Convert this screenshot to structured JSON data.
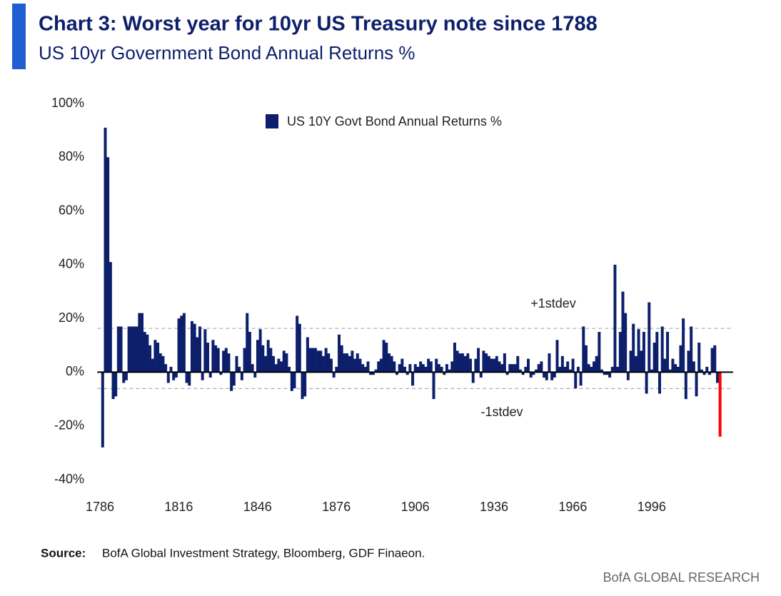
{
  "chart_data": {
    "type": "bar",
    "title": "Chart 3: Worst year for 10yr US Treasury note since 1788",
    "subtitle": "US 10yr Government Bond Annual Returns %",
    "source_label": "Source:",
    "source_text": "BofA Global Investment Strategy, Bloomberg, GDF Finaeon.",
    "footer": "BofA GLOBAL RESEARCH",
    "legend_position": "top",
    "xlim": [
      1785,
      2027
    ],
    "xticks": [
      1786,
      1816,
      1846,
      1876,
      1906,
      1936,
      1966,
      1996
    ],
    "ylim": [
      -40,
      100
    ],
    "yticks": [
      {
        "value": -40,
        "label": "-40%"
      },
      {
        "value": -20,
        "label": "-20%"
      },
      {
        "value": 0,
        "label": "0%"
      },
      {
        "value": 20,
        "label": "20%"
      },
      {
        "value": 40,
        "label": "40%"
      },
      {
        "value": 60,
        "label": "60%"
      },
      {
        "value": 80,
        "label": "80%"
      },
      {
        "value": 100,
        "label": "100%"
      }
    ],
    "reference_lines": [
      {
        "label": "+1stdev",
        "value": 16.3
      },
      {
        "label": "-1stdev",
        "value": -6.1
      }
    ],
    "last_color": "#ff0000",
    "series": [
      {
        "name": "US 10Y Govt Bond Annual Returns %",
        "color": "#0d1f6b",
        "x": [
          1787,
          1788,
          1789,
          1790,
          1791,
          1792,
          1793,
          1794,
          1795,
          1796,
          1797,
          1798,
          1799,
          1800,
          1801,
          1802,
          1803,
          1804,
          1805,
          1806,
          1807,
          1808,
          1809,
          1810,
          1811,
          1812,
          1813,
          1814,
          1815,
          1816,
          1817,
          1818,
          1819,
          1820,
          1821,
          1822,
          1823,
          1824,
          1825,
          1826,
          1827,
          1828,
          1829,
          1830,
          1831,
          1832,
          1833,
          1834,
          1835,
          1836,
          1837,
          1838,
          1839,
          1840,
          1841,
          1842,
          1843,
          1844,
          1845,
          1846,
          1847,
          1848,
          1849,
          1850,
          1851,
          1852,
          1853,
          1854,
          1855,
          1856,
          1857,
          1858,
          1859,
          1860,
          1861,
          1862,
          1863,
          1864,
          1865,
          1866,
          1867,
          1868,
          1869,
          1870,
          1871,
          1872,
          1873,
          1874,
          1875,
          1876,
          1877,
          1878,
          1879,
          1880,
          1881,
          1882,
          1883,
          1884,
          1885,
          1886,
          1887,
          1888,
          1889,
          1890,
          1891,
          1892,
          1893,
          1894,
          1895,
          1896,
          1897,
          1898,
          1899,
          1900,
          1901,
          1902,
          1903,
          1904,
          1905,
          1906,
          1907,
          1908,
          1909,
          1910,
          1911,
          1912,
          1913,
          1914,
          1915,
          1916,
          1917,
          1918,
          1919,
          1920,
          1921,
          1922,
          1923,
          1924,
          1925,
          1926,
          1927,
          1928,
          1929,
          1930,
          1931,
          1932,
          1933,
          1934,
          1935,
          1936,
          1937,
          1938,
          1939,
          1940,
          1941,
          1942,
          1943,
          1944,
          1945,
          1946,
          1947,
          1948,
          1949,
          1950,
          1951,
          1952,
          1953,
          1954,
          1955,
          1956,
          1957,
          1958,
          1959,
          1960,
          1961,
          1962,
          1963,
          1964,
          1965,
          1966,
          1967,
          1968,
          1969,
          1970,
          1971,
          1972,
          1973,
          1974,
          1975,
          1976,
          1977,
          1978,
          1979,
          1980,
          1981,
          1982,
          1983,
          1984,
          1985,
          1986,
          1987,
          1988,
          1989,
          1990,
          1991,
          1992,
          1993,
          1994,
          1995,
          1996,
          1997,
          1998,
          1999,
          2000,
          2001,
          2002,
          2003,
          2004,
          2005,
          2006,
          2007,
          2008,
          2009,
          2010,
          2011,
          2012,
          2013,
          2014,
          2015,
          2016,
          2017,
          2018,
          2019,
          2020,
          2021,
          2022
        ],
        "values": [
          -28,
          91,
          80,
          41,
          -10,
          -9,
          17,
          17,
          -4,
          -3,
          17,
          17,
          17,
          17,
          22,
          22,
          15,
          14,
          10,
          5,
          12,
          11,
          7,
          6,
          3,
          -4,
          2,
          -3,
          -2,
          20,
          21,
          22,
          -4,
          -5,
          19,
          18,
          13,
          17,
          -3,
          16,
          11,
          -2,
          12,
          10,
          9,
          -1,
          8,
          9,
          7,
          -7,
          -5,
          6,
          2,
          -3,
          9,
          22,
          15,
          3,
          -2,
          12,
          16,
          10,
          6,
          12,
          9,
          6,
          3,
          5,
          4,
          8,
          7,
          2,
          -7,
          -6,
          21,
          18,
          -10,
          -9,
          13,
          9,
          9,
          9,
          8,
          8,
          6,
          9,
          7,
          5,
          -2,
          2,
          14,
          10,
          7,
          7,
          6,
          8,
          5,
          7,
          5,
          3,
          2,
          4,
          -1,
          -1,
          1,
          4,
          5,
          12,
          11,
          7,
          6,
          4,
          -1,
          3,
          5,
          2,
          -1,
          3,
          -5,
          3,
          2,
          4,
          3,
          2,
          5,
          4,
          -10,
          5,
          3,
          2,
          -1,
          3,
          1,
          4,
          11,
          8,
          7,
          7,
          6,
          7,
          5,
          -4,
          5,
          9,
          -2,
          8,
          7,
          6,
          5,
          5,
          6,
          4,
          3,
          7,
          -1,
          3,
          3,
          3,
          6,
          1,
          -1,
          2,
          5,
          -2,
          -1,
          1,
          3,
          4,
          -2,
          -3,
          7,
          -3,
          -2,
          12,
          2,
          6,
          2,
          4,
          1,
          5,
          -6,
          2,
          -5,
          17,
          10,
          3,
          2,
          4,
          6,
          15,
          1,
          -1,
          -1,
          -2,
          2,
          40,
          2,
          15,
          30,
          22,
          -3,
          8,
          18,
          6,
          16,
          8,
          15,
          -8,
          26,
          1,
          11,
          15,
          -8,
          17,
          5,
          15,
          1,
          5,
          3,
          2,
          10,
          20,
          -10,
          8,
          17,
          4,
          -9,
          11,
          1,
          -1,
          2,
          -1,
          9,
          10,
          -4,
          -24
        ]
      }
    ]
  }
}
